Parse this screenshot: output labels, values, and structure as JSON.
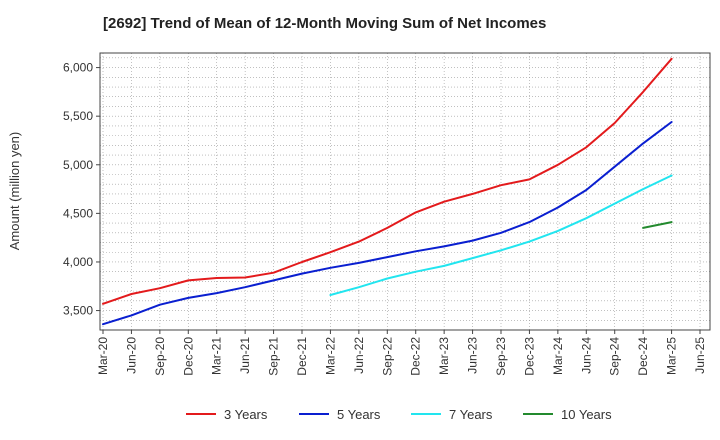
{
  "chart_data": {
    "type": "line",
    "title": "[2692]  Trend of Mean of 12-Month Moving Sum of Net Incomes",
    "ylabel": "Amount (million yen)",
    "xlabel": "",
    "ylim": [
      3300,
      6150
    ],
    "yticks": [
      3500,
      4000,
      4500,
      5000,
      5500,
      6000
    ],
    "ytick_labels": [
      "3,500",
      "4,000",
      "4,500",
      "5,000",
      "5,500",
      "6,000"
    ],
    "x_categories": [
      "Mar-20",
      "Jun-20",
      "Sep-20",
      "Dec-20",
      "Mar-21",
      "Jun-21",
      "Sep-21",
      "Dec-21",
      "Mar-22",
      "Jun-22",
      "Sep-22",
      "Dec-22",
      "Mar-23",
      "Jun-23",
      "Sep-23",
      "Dec-23",
      "Mar-24",
      "Jun-24",
      "Sep-24",
      "Dec-24",
      "Mar-25",
      "Jun-25"
    ],
    "grid": true,
    "legend_position": "bottom",
    "series": [
      {
        "name": "3 Years",
        "color": "#e31a1c",
        "points": [
          [
            "Mar-20",
            3570
          ],
          [
            "Jun-20",
            3670
          ],
          [
            "Sep-20",
            3730
          ],
          [
            "Dec-20",
            3810
          ],
          [
            "Mar-21",
            3835
          ],
          [
            "Jun-21",
            3840
          ],
          [
            "Sep-21",
            3890
          ],
          [
            "Dec-21",
            4000
          ],
          [
            "Mar-22",
            4100
          ],
          [
            "Jun-22",
            4210
          ],
          [
            "Sep-22",
            4350
          ],
          [
            "Dec-22",
            4510
          ],
          [
            "Mar-23",
            4620
          ],
          [
            "Jun-23",
            4700
          ],
          [
            "Sep-23",
            4790
          ],
          [
            "Dec-23",
            4850
          ],
          [
            "Mar-24",
            5000
          ],
          [
            "Jun-24",
            5180
          ],
          [
            "Sep-24",
            5430
          ],
          [
            "Dec-24",
            5750
          ],
          [
            "Mar-25",
            6090
          ]
        ]
      },
      {
        "name": "5 Years",
        "color": "#0a1fd0",
        "points": [
          [
            "Mar-20",
            3360
          ],
          [
            "Jun-20",
            3450
          ],
          [
            "Sep-20",
            3560
          ],
          [
            "Dec-20",
            3630
          ],
          [
            "Mar-21",
            3680
          ],
          [
            "Jun-21",
            3740
          ],
          [
            "Sep-21",
            3810
          ],
          [
            "Dec-21",
            3880
          ],
          [
            "Mar-22",
            3940
          ],
          [
            "Jun-22",
            3990
          ],
          [
            "Sep-22",
            4050
          ],
          [
            "Dec-22",
            4110
          ],
          [
            "Mar-23",
            4160
          ],
          [
            "Jun-23",
            4220
          ],
          [
            "Sep-23",
            4300
          ],
          [
            "Dec-23",
            4410
          ],
          [
            "Mar-24",
            4560
          ],
          [
            "Jun-24",
            4740
          ],
          [
            "Sep-24",
            4980
          ],
          [
            "Dec-24",
            5220
          ],
          [
            "Mar-25",
            5440
          ]
        ]
      },
      {
        "name": "7 Years",
        "color": "#22e5ef",
        "points": [
          [
            "Mar-22",
            3660
          ],
          [
            "Jun-22",
            3740
          ],
          [
            "Sep-22",
            3830
          ],
          [
            "Dec-22",
            3900
          ],
          [
            "Mar-23",
            3960
          ],
          [
            "Jun-23",
            4040
          ],
          [
            "Sep-23",
            4120
          ],
          [
            "Dec-23",
            4210
          ],
          [
            "Mar-24",
            4320
          ],
          [
            "Jun-24",
            4450
          ],
          [
            "Sep-24",
            4600
          ],
          [
            "Dec-24",
            4750
          ],
          [
            "Mar-25",
            4890
          ]
        ]
      },
      {
        "name": "10 Years",
        "color": "#238a2e",
        "points": [
          [
            "Dec-24",
            4350
          ],
          [
            "Mar-25",
            4410
          ]
        ]
      }
    ]
  }
}
